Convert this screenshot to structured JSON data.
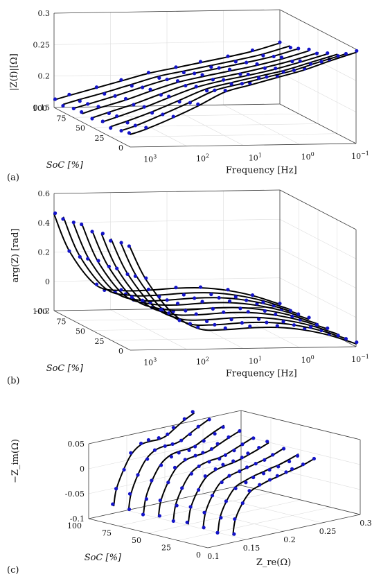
{
  "chart_data": [
    {
      "type": "line",
      "panel_label": "(a)",
      "zlabel": "|Z(f)|[Ω]",
      "xlabel": "Frequency [Hz]",
      "ylabel": "SoC [%]",
      "z_ticks": [
        "0.15",
        "0.2",
        "0.25",
        "0.3"
      ],
      "soc_ticks": [
        "0",
        "25",
        "50",
        "75",
        "100"
      ],
      "freq_ticks": [
        {
          "base": "10",
          "exp": "3"
        },
        {
          "base": "10",
          "exp": "2"
        },
        {
          "base": "10",
          "exp": "1"
        },
        {
          "base": "10",
          "exp": "0"
        },
        {
          "base": "10",
          "exp": "−1"
        }
      ],
      "soc_values": [
        0,
        12.5,
        25,
        37.5,
        50,
        62.5,
        75,
        87.5,
        100
      ],
      "log10_frequency": [
        3.3,
        3.0,
        2.5,
        2.0,
        1.5,
        1.0,
        0.5,
        0.0,
        -0.5,
        -1.0
      ],
      "z_min": 0.15,
      "z_max": 0.3,
      "series": [
        {
          "soc": 0,
          "values": [
            0.17,
            0.178,
            0.195,
            0.214,
            0.235,
            0.246,
            0.257,
            0.268,
            0.282,
            0.295
          ]
        },
        {
          "soc": 12.5,
          "values": [
            0.168,
            0.176,
            0.193,
            0.211,
            0.23,
            0.24,
            0.25,
            0.26,
            0.273,
            0.285
          ]
        },
        {
          "soc": 25,
          "values": [
            0.167,
            0.175,
            0.19,
            0.207,
            0.224,
            0.234,
            0.243,
            0.252,
            0.264,
            0.276
          ]
        },
        {
          "soc": 37.5,
          "values": [
            0.166,
            0.174,
            0.188,
            0.204,
            0.219,
            0.229,
            0.237,
            0.246,
            0.257,
            0.269
          ]
        },
        {
          "soc": 50,
          "values": [
            0.165,
            0.173,
            0.186,
            0.201,
            0.215,
            0.224,
            0.232,
            0.241,
            0.251,
            0.263
          ]
        },
        {
          "soc": 62.5,
          "values": [
            0.164,
            0.172,
            0.184,
            0.198,
            0.211,
            0.22,
            0.228,
            0.236,
            0.246,
            0.258
          ]
        },
        {
          "soc": 75,
          "values": [
            0.164,
            0.171,
            0.183,
            0.196,
            0.208,
            0.217,
            0.225,
            0.233,
            0.242,
            0.254
          ]
        },
        {
          "soc": 87.5,
          "values": [
            0.163,
            0.17,
            0.181,
            0.193,
            0.205,
            0.213,
            0.221,
            0.229,
            0.238,
            0.25
          ]
        },
        {
          "soc": 100,
          "values": [
            0.162,
            0.169,
            0.18,
            0.191,
            0.202,
            0.21,
            0.218,
            0.226,
            0.235,
            0.247
          ]
        }
      ]
    },
    {
      "type": "line",
      "panel_label": "(b)",
      "zlabel": "arg(Z) [rad]",
      "xlabel": "Frequency [Hz]",
      "ylabel": "SoC [%]",
      "z_ticks": [
        "-0.2",
        "0",
        "0.2",
        "0.4",
        "0.6"
      ],
      "soc_ticks": [
        "0",
        "25",
        "50",
        "75",
        "100"
      ],
      "freq_ticks": [
        {
          "base": "10",
          "exp": "3"
        },
        {
          "base": "10",
          "exp": "2"
        },
        {
          "base": "10",
          "exp": "1"
        },
        {
          "base": "10",
          "exp": "0"
        },
        {
          "base": "10",
          "exp": "−1"
        }
      ],
      "soc_values": [
        0,
        12.5,
        25,
        37.5,
        50,
        62.5,
        75,
        87.5,
        100
      ],
      "log10_frequency": [
        3.3,
        3.0,
        2.5,
        2.0,
        1.5,
        1.0,
        0.5,
        0.0,
        -0.5,
        -1.0
      ],
      "z_min": -0.2,
      "z_max": 0.6,
      "series": [
        {
          "soc": 0,
          "values": [
            0.5,
            0.28,
            0.05,
            -0.06,
            -0.07,
            -0.06,
            -0.06,
            -0.08,
            -0.12,
            -0.18
          ]
        },
        {
          "soc": 12.5,
          "values": [
            0.5,
            0.27,
            0.04,
            -0.06,
            -0.07,
            -0.06,
            -0.06,
            -0.08,
            -0.12,
            -0.18
          ]
        },
        {
          "soc": 25,
          "values": [
            0.49,
            0.26,
            0.03,
            -0.06,
            -0.07,
            -0.06,
            -0.06,
            -0.08,
            -0.12,
            -0.18
          ]
        },
        {
          "soc": 37.5,
          "values": [
            0.49,
            0.25,
            0.02,
            -0.06,
            -0.07,
            -0.06,
            -0.06,
            -0.08,
            -0.12,
            -0.18
          ]
        },
        {
          "soc": 50,
          "values": [
            0.48,
            0.24,
            0.01,
            -0.06,
            -0.07,
            -0.06,
            -0.06,
            -0.08,
            -0.12,
            -0.18
          ]
        },
        {
          "soc": 62.5,
          "values": [
            0.48,
            0.23,
            0.0,
            -0.06,
            -0.07,
            -0.06,
            -0.06,
            -0.08,
            -0.12,
            -0.18
          ]
        },
        {
          "soc": 75,
          "values": [
            0.47,
            0.22,
            -0.01,
            -0.07,
            -0.07,
            -0.06,
            -0.06,
            -0.08,
            -0.12,
            -0.18
          ]
        },
        {
          "soc": 87.5,
          "values": [
            0.47,
            0.21,
            -0.02,
            -0.07,
            -0.07,
            -0.06,
            -0.06,
            -0.08,
            -0.12,
            -0.18
          ]
        },
        {
          "soc": 100,
          "values": [
            0.46,
            0.2,
            -0.03,
            -0.07,
            -0.07,
            -0.06,
            -0.06,
            -0.08,
            -0.12,
            -0.18
          ]
        }
      ]
    },
    {
      "type": "line",
      "panel_label": "(c)",
      "zlabel": "−Z_im(Ω)",
      "xlabel": "Z_re(Ω)",
      "ylabel": "SoC [%]",
      "z_ticks": [
        "-0.1",
        "-0.05",
        "0",
        "0.05"
      ],
      "soc_ticks": [
        "0",
        "25",
        "50",
        "75",
        "100"
      ],
      "zre_ticks": [
        "0.1",
        "0.15",
        "0.2",
        "0.25",
        "0.3"
      ],
      "soc_values": [
        100,
        87.5,
        75,
        62.5,
        50,
        37.5,
        25,
        12.5,
        0
      ],
      "z_min": -0.1,
      "z_max": 0.05,
      "series_zre": [
        0.133,
        0.136,
        0.145,
        0.156,
        0.168,
        0.18,
        0.192,
        0.202,
        0.212,
        0.225,
        0.238
      ],
      "series": [
        {
          "soc": 100,
          "values": [
            -0.085,
            -0.055,
            -0.02,
            0.01,
            0.025,
            0.028,
            0.028,
            0.032,
            0.042,
            0.055,
            0.065
          ]
        },
        {
          "soc": 87.5,
          "values": [
            -0.085,
            -0.055,
            -0.02,
            0.008,
            0.022,
            0.026,
            0.026,
            0.03,
            0.039,
            0.05,
            0.06
          ]
        },
        {
          "soc": 75,
          "values": [
            -0.085,
            -0.055,
            -0.021,
            0.006,
            0.019,
            0.023,
            0.024,
            0.028,
            0.036,
            0.046,
            0.055
          ]
        },
        {
          "soc": 62.5,
          "values": [
            -0.085,
            -0.055,
            -0.022,
            0.004,
            0.016,
            0.02,
            0.022,
            0.026,
            0.033,
            0.042,
            0.05
          ]
        },
        {
          "soc": 50,
          "values": [
            -0.085,
            -0.055,
            -0.023,
            0.002,
            0.013,
            0.018,
            0.02,
            0.024,
            0.03,
            0.038,
            0.046
          ]
        },
        {
          "soc": 37.5,
          "values": [
            -0.085,
            -0.055,
            -0.024,
            0.0,
            0.01,
            0.015,
            0.018,
            0.022,
            0.027,
            0.034,
            0.042
          ]
        },
        {
          "soc": 25,
          "values": [
            -0.085,
            -0.056,
            -0.025,
            -0.002,
            0.007,
            0.012,
            0.016,
            0.02,
            0.024,
            0.03,
            0.038
          ]
        },
        {
          "soc": 12.5,
          "values": [
            -0.085,
            -0.056,
            -0.026,
            -0.004,
            0.004,
            0.01,
            0.014,
            0.018,
            0.021,
            0.027,
            0.034
          ]
        },
        {
          "soc": 0,
          "values": [
            -0.085,
            -0.056,
            -0.027,
            -0.006,
            0.002,
            0.008,
            0.012,
            0.016,
            0.019,
            0.024,
            0.031
          ]
        }
      ]
    }
  ]
}
